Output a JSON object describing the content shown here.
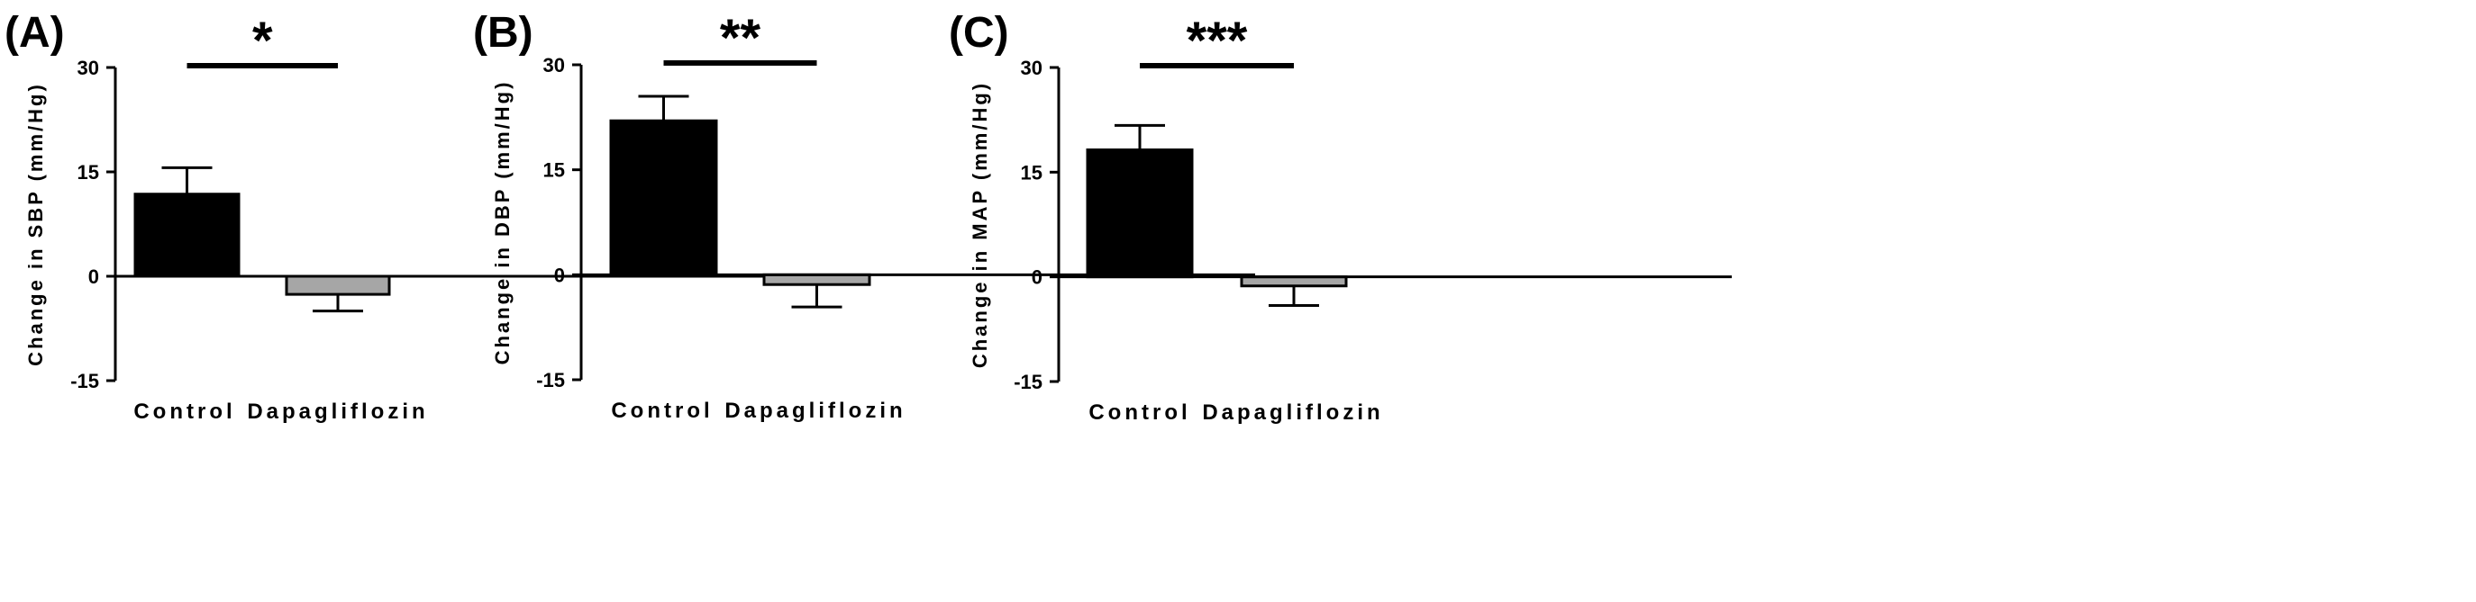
{
  "chart_data": [
    {
      "type": "bar",
      "panel": "(A)",
      "ylabel": "Change in SBP (mm/Hg)",
      "categories": [
        "Control",
        "Dapagliflozin"
      ],
      "values": [
        11.8,
        -2.6
      ],
      "error": [
        3.8,
        2.4
      ],
      "colors": [
        "#000000",
        "#a6a6a6"
      ],
      "ylim": [
        -15,
        30
      ],
      "yticks": [
        "30",
        "15",
        "0",
        "-15"
      ],
      "significance": "*"
    },
    {
      "type": "bar",
      "panel": "(B)",
      "ylabel": "Change in DBP (mm/Hg)",
      "categories": [
        "Control",
        "Dapagliflozin"
      ],
      "values": [
        22.0,
        -1.4
      ],
      "error": [
        3.5,
        3.2
      ],
      "colors": [
        "#000000",
        "#a6a6a6"
      ],
      "ylim": [
        -15,
        30
      ],
      "yticks": [
        "30",
        "15",
        "0",
        "-15"
      ],
      "significance": "**"
    },
    {
      "type": "bar",
      "panel": "(C)",
      "ylabel": "Change in MAP (mm/Hg)",
      "categories": [
        "Control",
        "Dapagliflozin"
      ],
      "values": [
        18.2,
        -1.3
      ],
      "error": [
        3.5,
        2.8
      ],
      "colors": [
        "#000000",
        "#a6a6a6"
      ],
      "ylim": [
        -15,
        30
      ],
      "yticks": [
        "30",
        "15",
        "0",
        "-15"
      ],
      "significance": "***"
    }
  ]
}
